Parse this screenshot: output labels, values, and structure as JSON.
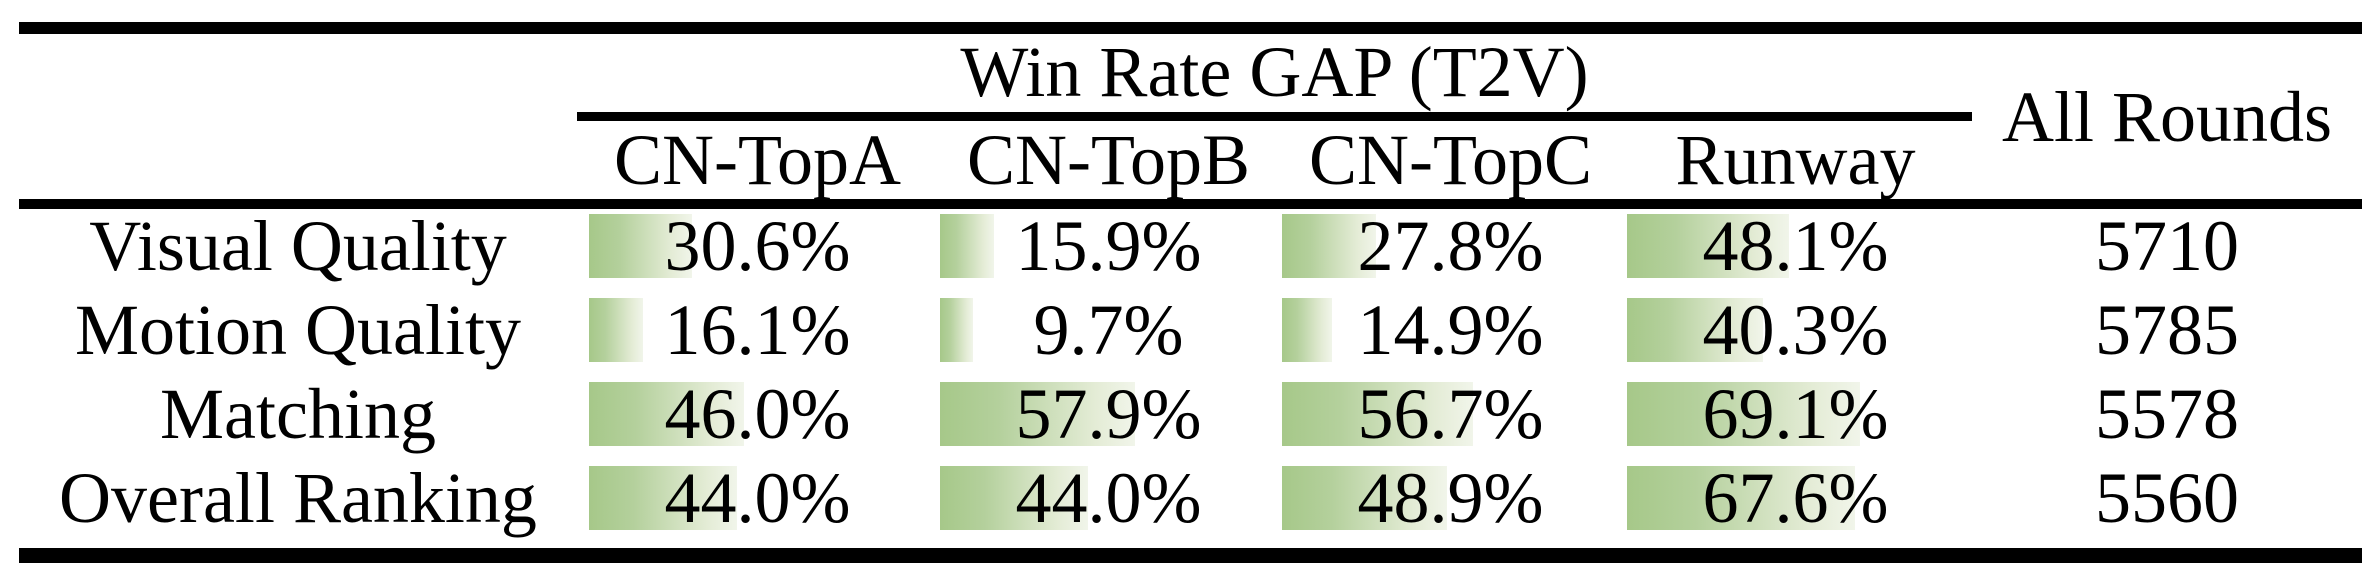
{
  "colors": {
    "background": "#ffffff",
    "rule": "#000000",
    "text": "#000000",
    "bar_green_start": "#a6c889",
    "bar_green_end": "#f1f5ea"
  },
  "table": {
    "title": "Win Rate GAP (T2V)",
    "all_rounds_header": "All Rounds",
    "columns": [
      "CN-TopA",
      "CN-TopB",
      "CN-TopC",
      "Runway"
    ],
    "rows": [
      {
        "label": "Visual Quality",
        "cells": [
          {
            "pct": 30.6,
            "text": "30.6%"
          },
          {
            "pct": 15.9,
            "text": "15.9%"
          },
          {
            "pct": 27.8,
            "text": "27.8%"
          },
          {
            "pct": 48.1,
            "text": "48.1%"
          }
        ],
        "rounds": "5710"
      },
      {
        "label": "Motion Quality",
        "cells": [
          {
            "pct": 16.1,
            "text": "16.1%"
          },
          {
            "pct": 9.7,
            "text": "9.7%"
          },
          {
            "pct": 14.9,
            "text": "14.9%"
          },
          {
            "pct": 40.3,
            "text": "40.3%"
          }
        ],
        "rounds": "5785"
      },
      {
        "label": "Matching",
        "cells": [
          {
            "pct": 46.0,
            "text": "46.0%"
          },
          {
            "pct": 57.9,
            "text": "57.9%"
          },
          {
            "pct": 56.7,
            "text": "56.7%"
          },
          {
            "pct": 69.1,
            "text": "69.1%"
          }
        ],
        "rounds": "5578"
      },
      {
        "label": "Overall Ranking",
        "cells": [
          {
            "pct": 44.0,
            "text": "44.0%"
          },
          {
            "pct": 44.0,
            "text": "44.0%"
          },
          {
            "pct": 48.9,
            "text": "48.9%"
          },
          {
            "pct": 67.6,
            "text": "67.6%"
          }
        ],
        "rounds": "5560"
      }
    ]
  },
  "chart_data": {
    "type": "table",
    "title": "Win Rate GAP (T2V)",
    "categories": [
      "Visual Quality",
      "Motion Quality",
      "Matching",
      "Overall Ranking"
    ],
    "series": [
      {
        "name": "CN-TopA",
        "values": [
          30.6,
          16.1,
          46.0,
          44.0
        ]
      },
      {
        "name": "CN-TopB",
        "values": [
          15.9,
          9.7,
          57.9,
          44.0
        ]
      },
      {
        "name": "CN-TopC",
        "values": [
          27.8,
          14.9,
          56.7,
          48.9
        ]
      },
      {
        "name": "Runway",
        "values": [
          48.1,
          40.3,
          69.1,
          67.6
        ]
      }
    ],
    "extra_column": {
      "label": "All Rounds",
      "values": [
        5710,
        5785,
        5578,
        5560
      ]
    },
    "unit": "%",
    "bar_style": "in-cell horizontal green gradient data bars; bar length proportional to value with 100% equal to full cell width (337px)"
  }
}
